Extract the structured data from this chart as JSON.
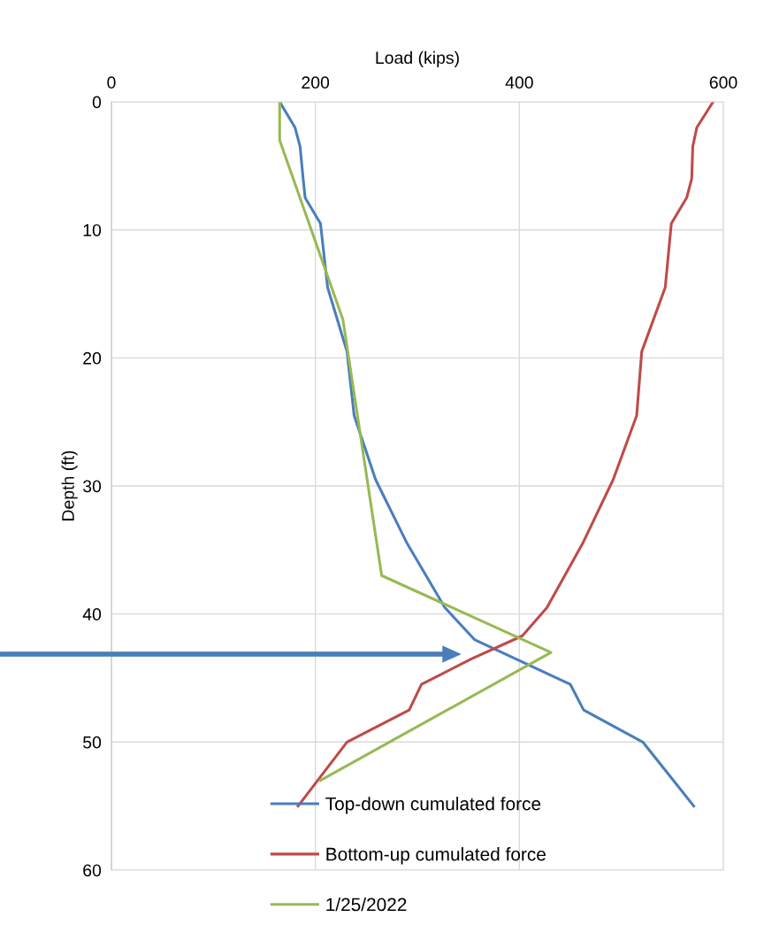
{
  "chart_data": {
    "type": "line",
    "xlabel": "Load (kips)",
    "ylabel": "Depth (ft)",
    "xlim": [
      0,
      600
    ],
    "xticks": [
      0,
      200,
      400,
      600
    ],
    "ylim": [
      60,
      0
    ],
    "yticks": [
      0,
      10,
      20,
      30,
      40,
      50,
      60
    ],
    "grid": true,
    "legend": "bottom",
    "marker": "none",
    "line_style": "solid",
    "series": [
      {
        "name": "Top-down cumulated force",
        "color": "#4a7ebb",
        "x": [
          165,
          180,
          185,
          188,
          190,
          205,
          212,
          231,
          238,
          259,
          290,
          327,
          356,
          450,
          463,
          521,
          571
        ],
        "values": [
          0,
          2,
          3.5,
          6,
          7.5,
          9.5,
          14.5,
          19.5,
          24.5,
          29.5,
          34.5,
          39.5,
          42,
          45.5,
          47.5,
          50,
          55
        ]
      },
      {
        "name": "Bottom-up cumulated force",
        "color": "#be4b48",
        "x": [
          590,
          574,
          570,
          569,
          564,
          549,
          543,
          520,
          515,
          492,
          462,
          427,
          403,
          353,
          304,
          292,
          231,
          183
        ],
        "values": [
          0,
          2,
          3.5,
          6,
          7.5,
          9.5,
          14.5,
          19.5,
          24.5,
          29.5,
          34.5,
          39.5,
          41.7,
          43.5,
          45.5,
          47.5,
          50,
          55
        ]
      },
      {
        "name": "1/25/2022",
        "color": "#98b954",
        "x": [
          165,
          165,
          227,
          265,
          431,
          205
        ],
        "values": [
          0,
          3,
          17,
          37,
          43,
          53
        ]
      }
    ]
  }
}
